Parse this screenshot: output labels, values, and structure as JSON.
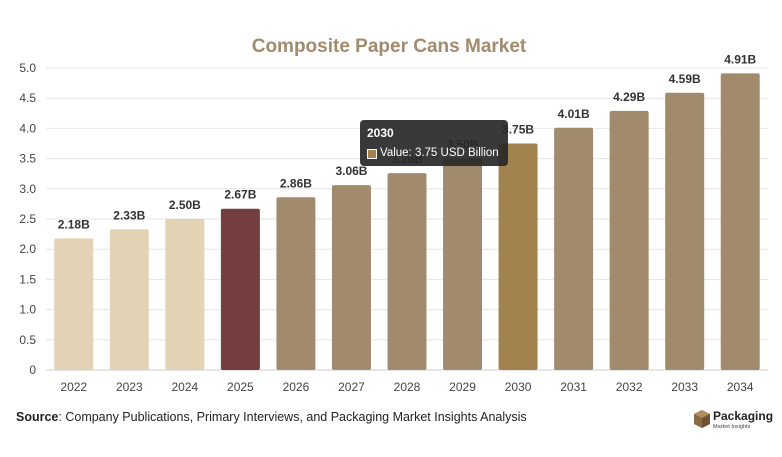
{
  "chart_data": {
    "type": "bar",
    "title": "Composite Paper Cans Market",
    "categories": [
      "2022",
      "2023",
      "2024",
      "2025",
      "2026",
      "2027",
      "2028",
      "2029",
      "2030",
      "2031",
      "2032",
      "2033",
      "2034"
    ],
    "values": [
      2.18,
      2.33,
      2.5,
      2.67,
      2.86,
      3.06,
      3.26,
      3.5,
      3.75,
      4.01,
      4.29,
      4.59,
      4.91
    ],
    "data_labels": [
      "2.18B",
      "2.33B",
      "2.50B",
      "2.67B",
      "2.86B",
      "3.06B",
      "3.26B",
      "3.50B",
      "3.75B",
      "4.01B",
      "4.29B",
      "4.59B",
      "4.91B"
    ],
    "bar_colors": [
      "#e3d3b5",
      "#e3d3b5",
      "#e3d3b5",
      "#743e3e",
      "#a28b6d",
      "#a28b6d",
      "#a28b6d",
      "#a28b6d",
      "#a2834f",
      "#a28b6d",
      "#a28b6d",
      "#a28b6d",
      "#a28b6d"
    ],
    "yticks": [
      "0",
      "0.5",
      "1.0",
      "1.5",
      "2.0",
      "2.5",
      "3.0",
      "3.5",
      "4.0",
      "4.5",
      "5.0"
    ],
    "ylim": [
      0,
      5
    ],
    "grid": "horizontal",
    "title_color": "#a28b6d"
  },
  "tooltip": {
    "title": "2030",
    "label": "Value: 3.75 USD Billion",
    "swatch_color": "#a2834f"
  },
  "source": {
    "prefix": "Source",
    "text": ": Company Publications, Primary Interviews, and Packaging Market Insights Analysis"
  },
  "logo": {
    "name": "Packaging",
    "tagline": "Market Insights"
  }
}
